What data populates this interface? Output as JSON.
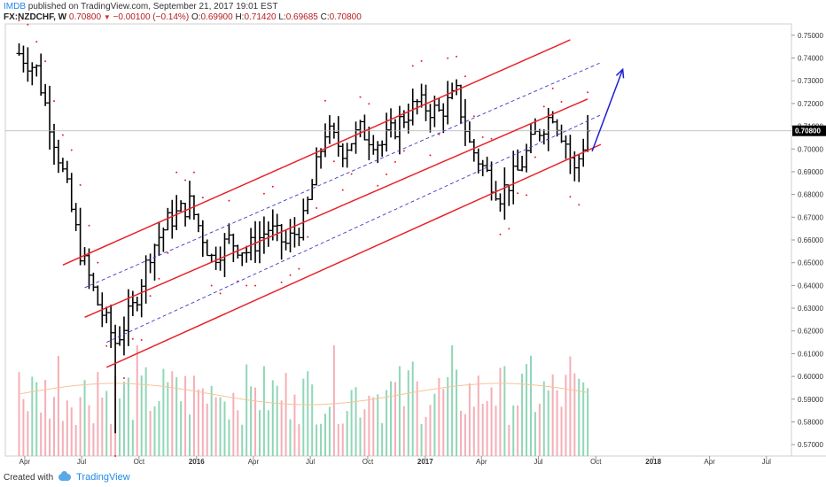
{
  "header": {
    "brand": "IMDB",
    "published": " published on TradingView.com, September 21, 2017 19:01 EST",
    "symbol": "FX:NZDCHF, W",
    "price": "0.70800",
    "change": "−0.00100 (−0.14%)",
    "open_label": "O:",
    "open": "0.69900",
    "high_label": "H:",
    "high": "0.71420",
    "low_label": "L:",
    "low": "0.69685",
    "close_label": "C:",
    "close": "0.70800"
  },
  "footer": {
    "created_with": "Created with",
    "brand": "TradingView"
  },
  "colors": {
    "candle": "#000000",
    "channel_red": "#e8232a",
    "channel_blue": "#3c3cc8",
    "arrow": "#1f1fd0",
    "vol_up": "#7ccfaa",
    "vol_down": "#f2a1a9",
    "ma": "#f7c49a",
    "psar": "#e8232a",
    "grid": "#e6e6e6"
  },
  "chart_data": {
    "type": "ohlc",
    "symbol": "FX:NZDCHF",
    "timeframe": "W",
    "ylim": [
      0.565,
      0.755
    ],
    "y_ticks": [
      "0.57000",
      "0.58000",
      "0.59000",
      "0.60000",
      "0.61000",
      "0.62000",
      "0.63000",
      "0.64000",
      "0.65000",
      "0.66000",
      "0.67000",
      "0.68000",
      "0.69000",
      "0.70000",
      "0.71000",
      "0.72000",
      "0.73000",
      "0.74000",
      "0.75000"
    ],
    "x_ticks": [
      {
        "label": "Apr",
        "date": "2015-04-01"
      },
      {
        "label": "Jul",
        "date": "2015-07-01"
      },
      {
        "label": "Oct",
        "date": "2015-10-01"
      },
      {
        "label": "2016",
        "date": "2016-01-01"
      },
      {
        "label": "Apr",
        "date": "2016-04-01"
      },
      {
        "label": "Jul",
        "date": "2016-07-01"
      },
      {
        "label": "Oct",
        "date": "2016-10-01"
      },
      {
        "label": "2017",
        "date": "2017-01-01"
      },
      {
        "label": "Apr",
        "date": "2017-04-01"
      },
      {
        "label": "Jul",
        "date": "2017-07-01"
      },
      {
        "label": "Oct",
        "date": "2017-10-01"
      },
      {
        "label": "2018",
        "date": "2018-01-01"
      },
      {
        "label": "Apr",
        "date": "2018-04-01"
      },
      {
        "label": "Jul",
        "date": "2018-07-01"
      }
    ],
    "current_price": 0.708,
    "current_price_label": "0.70800",
    "ohlc_anchor": [
      [
        "2015-03-23",
        0.742
      ],
      [
        "2015-04-20",
        0.735
      ],
      [
        "2015-05-11",
        0.712
      ],
      [
        "2015-06-08",
        0.682
      ],
      [
        "2015-06-29",
        0.655
      ],
      [
        "2015-07-27",
        0.632
      ],
      [
        "2015-08-24",
        0.615
      ],
      [
        "2015-09-21",
        0.63
      ],
      [
        "2015-10-19",
        0.655
      ],
      [
        "2015-11-16",
        0.668
      ],
      [
        "2015-12-21",
        0.676
      ],
      [
        "2016-01-25",
        0.652
      ],
      [
        "2016-02-22",
        0.66
      ],
      [
        "2016-03-21",
        0.655
      ],
      [
        "2016-04-25",
        0.665
      ],
      [
        "2016-05-23",
        0.658
      ],
      [
        "2016-06-20",
        0.668
      ],
      [
        "2016-07-25",
        0.708
      ],
      [
        "2016-08-22",
        0.7
      ],
      [
        "2016-09-19",
        0.708
      ],
      [
        "2016-10-24",
        0.702
      ],
      [
        "2016-11-21",
        0.712
      ],
      [
        "2016-12-19",
        0.72
      ],
      [
        "2017-01-23",
        0.716
      ],
      [
        "2017-02-20",
        0.724
      ],
      [
        "2017-03-13",
        0.702
      ],
      [
        "2017-04-03",
        0.692
      ],
      [
        "2017-05-01",
        0.68
      ],
      [
        "2017-05-29",
        0.69
      ],
      [
        "2017-06-26",
        0.706
      ],
      [
        "2017-07-24",
        0.716
      ],
      [
        "2017-08-14",
        0.703
      ],
      [
        "2017-08-28",
        0.69
      ],
      [
        "2017-09-18",
        0.708
      ]
    ],
    "channel_red": [
      {
        "x1": "2015-06-01",
        "y1": 0.649,
        "x2": "2017-08-21",
        "y2": 0.748
      },
      {
        "x1": "2015-07-06",
        "y1": 0.626,
        "x2": "2017-09-18",
        "y2": 0.722
      },
      {
        "x1": "2015-08-10",
        "y1": 0.604,
        "x2": "2017-10-09",
        "y2": 0.702
      }
    ],
    "channel_blue_dashed": [
      {
        "x1": "2015-07-06",
        "y1": 0.639,
        "x2": "2017-10-09",
        "y2": 0.738
      },
      {
        "x1": "2015-08-10",
        "y1": 0.615,
        "x2": "2017-10-09",
        "y2": 0.715
      }
    ],
    "projection_arrow": {
      "x1": "2017-09-25",
      "y1": 0.699,
      "x2": "2017-11-13",
      "y2": 0.735
    }
  }
}
